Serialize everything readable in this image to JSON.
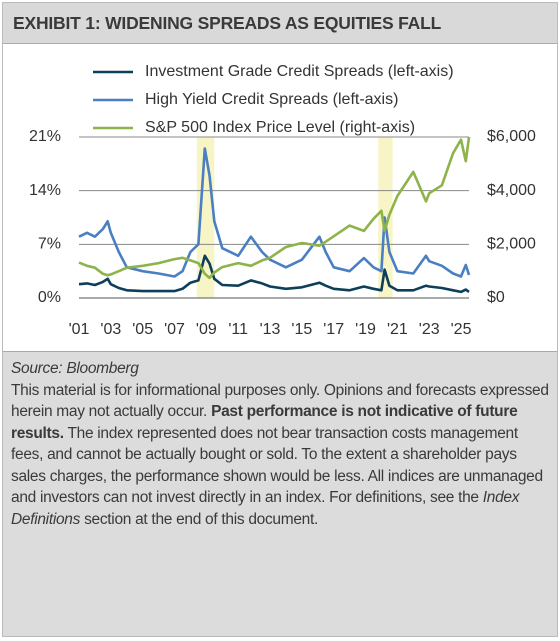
{
  "header": {
    "title": "EXHIBIT 1: WIDENING SPREADS AS EQUITIES FALL"
  },
  "chart_data": {
    "type": "line",
    "x": [
      2001,
      2001.5,
      2002,
      2002.5,
      2002.8,
      2003,
      2003.5,
      2004,
      2005,
      2006,
      2007,
      2007.5,
      2008,
      2008.5,
      2008.9,
      2009.2,
      2009.5,
      2010,
      2011,
      2011.8,
      2012.5,
      2013,
      2014,
      2015,
      2016.1,
      2016.5,
      2017,
      2018,
      2018.9,
      2019.5,
      2020,
      2020.2,
      2020.5,
      2021,
      2022,
      2022.8,
      2023,
      2023.8,
      2024.5,
      2025,
      2025.3,
      2025.5
    ],
    "series": [
      {
        "name": "Investment Grade Credit Spreads (left-axis)",
        "color": "#0e3f5a",
        "axis": "y",
        "values": [
          1.8,
          1.9,
          1.7,
          2.1,
          2.5,
          1.8,
          1.3,
          1.0,
          0.9,
          0.9,
          0.9,
          1.2,
          2.0,
          2.3,
          5.5,
          4.5,
          2.5,
          1.7,
          1.6,
          2.3,
          1.9,
          1.5,
          1.2,
          1.4,
          2.0,
          1.6,
          1.2,
          1.0,
          1.5,
          1.2,
          1.0,
          3.7,
          1.6,
          1.0,
          1.0,
          1.6,
          1.5,
          1.3,
          1.0,
          0.8,
          1.1,
          0.8
        ]
      },
      {
        "name": "High Yield Credit Spreads (left-axis)",
        "color": "#4a7fc1",
        "axis": "y",
        "values": [
          8,
          8.5,
          8,
          9,
          10,
          8.5,
          6,
          4,
          3.5,
          3.2,
          2.8,
          3.5,
          6,
          7,
          19.5,
          16,
          10,
          6.5,
          5.5,
          8,
          6,
          5,
          4,
          5,
          8,
          6,
          4,
          3.5,
          5.2,
          4,
          3.5,
          10.5,
          6,
          3.5,
          3.2,
          5.5,
          4.8,
          4.2,
          3.2,
          2.8,
          4.3,
          3
        ]
      },
      {
        "name": "S&P 500 Index Price Level (right-axis)",
        "color": "#8db34a",
        "axis": "y2",
        "values": [
          1320,
          1200,
          1130,
          900,
          850,
          880,
          1000,
          1130,
          1200,
          1300,
          1450,
          1500,
          1400,
          1300,
          900,
          750,
          950,
          1150,
          1300,
          1200,
          1400,
          1500,
          1900,
          2050,
          1950,
          2100,
          2300,
          2700,
          2500,
          2950,
          3250,
          2500,
          3100,
          3800,
          4700,
          3600,
          3900,
          4200,
          5400,
          5900,
          5100,
          6000
        ]
      }
    ],
    "highlight_ranges": [
      [
        2008.4,
        2009.5
      ],
      [
        2019.8,
        2020.7
      ]
    ],
    "highlight_color": "#f7f5c6",
    "xlim": [
      2001,
      2025.5
    ],
    "xticks": [
      {
        "value": 2001,
        "label": "'01"
      },
      {
        "value": 2003,
        "label": "'03"
      },
      {
        "value": 2005,
        "label": "'05"
      },
      {
        "value": 2007,
        "label": "'07"
      },
      {
        "value": 2009,
        "label": "'09"
      },
      {
        "value": 2011,
        "label": "'11"
      },
      {
        "value": 2013,
        "label": "'13"
      },
      {
        "value": 2015,
        "label": "'15"
      },
      {
        "value": 2017,
        "label": "'17"
      },
      {
        "value": 2019,
        "label": "'19"
      },
      {
        "value": 2021,
        "label": "'21"
      },
      {
        "value": 2023,
        "label": "'23"
      },
      {
        "value": 2025,
        "label": "'25"
      }
    ],
    "ylim": [
      0,
      21
    ],
    "yticks": [
      {
        "value": 0,
        "label": "0%"
      },
      {
        "value": 7,
        "label": "7%"
      },
      {
        "value": 14,
        "label": "14%"
      },
      {
        "value": 21,
        "label": "21%"
      }
    ],
    "y2lim": [
      0,
      6000
    ],
    "y2ticks": [
      {
        "value": 0,
        "label": "$0"
      },
      {
        "value": 2000,
        "label": "$2,000"
      },
      {
        "value": 4000,
        "label": "$4,000"
      },
      {
        "value": 6000,
        "label": "$6,000"
      }
    ],
    "grid": true,
    "legend": "top"
  },
  "footer": {
    "source": "Source: Bloomberg",
    "parts": [
      {
        "style": "normal",
        "text": "This material is for informational purposes only. Opinions and forecasts expressed herein may not actually occur. "
      },
      {
        "style": "bold",
        "text": "Past performance is not indicative of future results."
      },
      {
        "style": "normal",
        "text": " The index represented does not bear transaction costs management fees, and cannot be actually bought or sold. To the extent a shareholder pays sales charges, the performance shown would be less. All indices are unmanaged and investors can not invest directly in an index. For definitions, see the "
      },
      {
        "style": "italic",
        "text": "Index Definitions"
      },
      {
        "style": "normal",
        "text": " section at the end of this document."
      }
    ]
  }
}
